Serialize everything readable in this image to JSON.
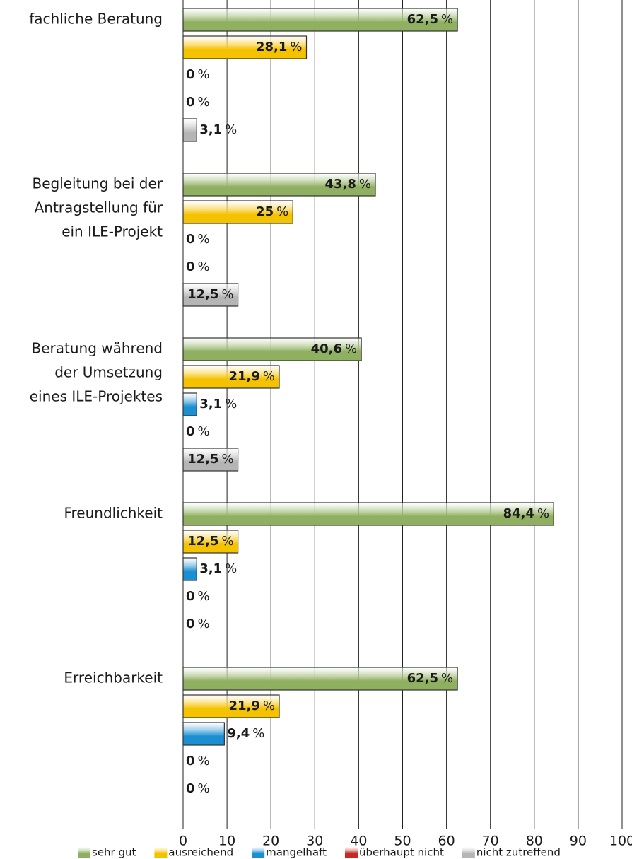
{
  "chart_data": {
    "type": "bar",
    "orientation": "horizontal",
    "categories": [
      [
        "fachliche Beratung"
      ],
      [
        "Begleitung bei der",
        "Antragstellung für",
        "ein ILE-Projekt"
      ],
      [
        "Beratung während",
        "der Umsetzung",
        "eines ILE-Projektes"
      ],
      [
        "Freundlichkeit"
      ],
      [
        "Erreichbarkeit"
      ]
    ],
    "unit": "%",
    "series": [
      {
        "name": "sehr gut",
        "color": "#8fb060",
        "values": [
          62.5,
          43.8,
          40.6,
          84.4,
          62.5
        ],
        "value_labels": [
          "62,5",
          "43,8",
          "40,6",
          "84,4",
          "62,5"
        ]
      },
      {
        "name": "ausreichend",
        "color": "#f5c200",
        "values": [
          28.1,
          25,
          21.9,
          12.5,
          21.9
        ],
        "value_labels": [
          "28,1",
          "25",
          "21,9",
          "12,5",
          "21,9"
        ]
      },
      {
        "name": "mangelhaft",
        "color": "#1b8fd2",
        "values": [
          0,
          0,
          3.1,
          3.1,
          9.4
        ],
        "value_labels": [
          "0",
          "0",
          "3,1",
          "3,1",
          "9,4"
        ]
      },
      {
        "name": "überhaupt nicht",
        "color": "#c42a22",
        "values": [
          0,
          0,
          0,
          0,
          0
        ],
        "value_labels": [
          "0",
          "0",
          "0",
          "0",
          "0"
        ]
      },
      {
        "name": "nicht zutreffend",
        "color": "#b5b5b5",
        "values": [
          3.1,
          12.5,
          12.5,
          0,
          0
        ],
        "value_labels": [
          "3,1",
          "12,5",
          "12,5",
          "0",
          "0"
        ]
      }
    ],
    "xlim": [
      0,
      100
    ],
    "xticks": [
      0,
      10,
      20,
      30,
      40,
      50,
      60,
      70,
      80,
      90,
      100
    ],
    "grid": true,
    "legend": "bottom"
  }
}
